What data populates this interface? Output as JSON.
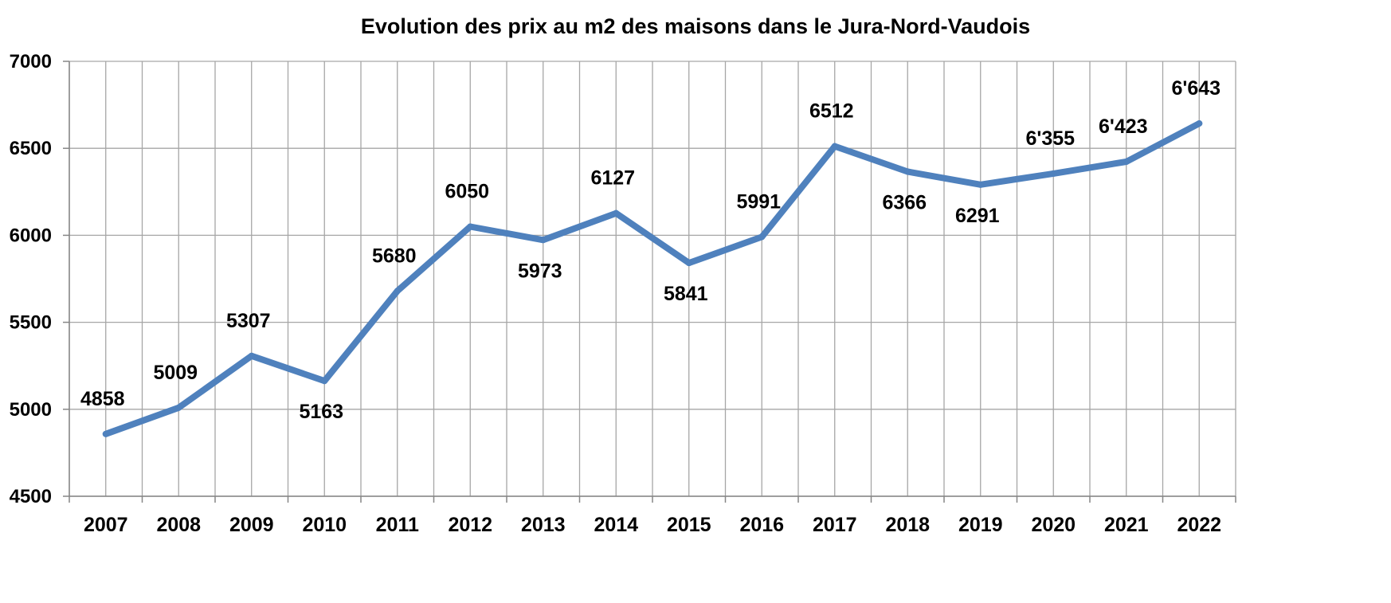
{
  "chart_data": {
    "type": "line",
    "title": "Evolution des prix au m2 des maisons dans le Jura-Nord-Vaudois",
    "xlabel": "",
    "ylabel": "",
    "categories": [
      "2007",
      "2008",
      "2009",
      "2010",
      "2011",
      "2012",
      "2013",
      "2014",
      "2015",
      "2016",
      "2017",
      "2018",
      "2019",
      "2020",
      "2021",
      "2022"
    ],
    "series": [
      {
        "values": [
          4858,
          5009,
          5307,
          5163,
          5680,
          6050,
          5973,
          6127,
          5841,
          5991,
          6512,
          6366,
          6291,
          6355,
          6423,
          6643
        ],
        "data_labels": [
          "4858",
          "5009",
          "5307",
          "5163",
          "5680",
          "6050",
          "5973",
          "6127",
          "5841",
          "5991",
          "6512",
          "6366",
          "6291",
          "6'355",
          "6'423",
          "6'643"
        ],
        "label_positions": [
          "above",
          "above",
          "above",
          "below",
          "above",
          "above",
          "below",
          "above",
          "below",
          "above",
          "above",
          "below",
          "below",
          "above",
          "above",
          "above"
        ],
        "color": "#4f81bd"
      }
    ],
    "yticks": [
      "4500",
      "5000",
      "5500",
      "6000",
      "6500",
      "7000"
    ],
    "ylim": [
      4500,
      7000
    ],
    "grid": true,
    "legend": "none"
  }
}
